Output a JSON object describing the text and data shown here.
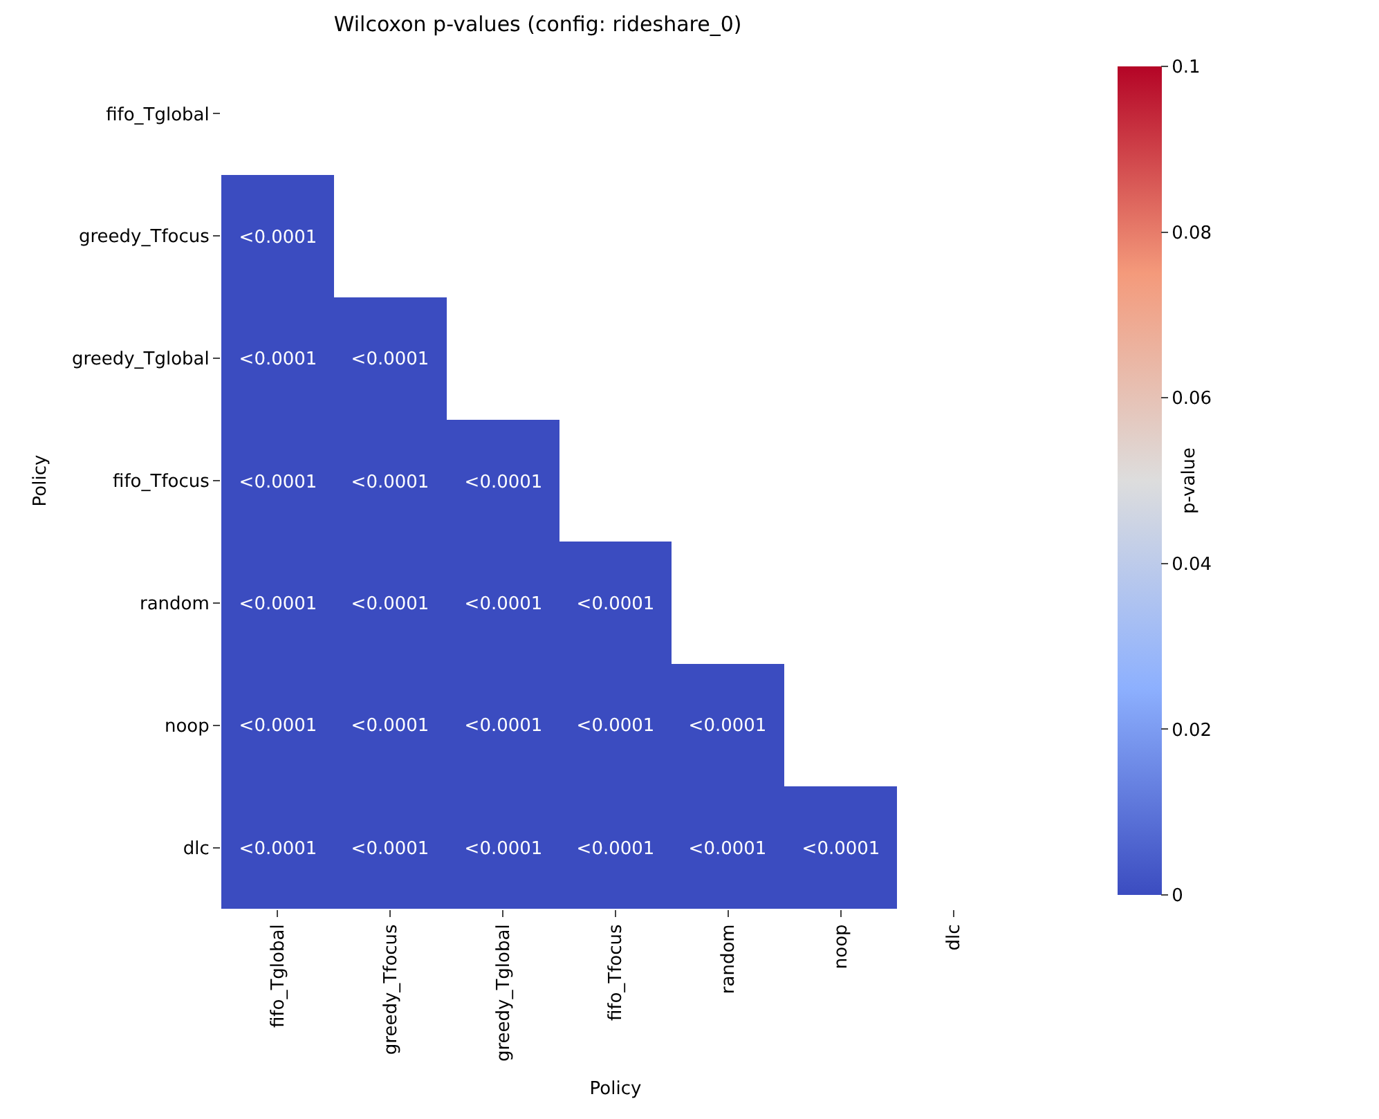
{
  "chart_data": {
    "type": "heatmap",
    "title": "Wilcoxon p-values (config: rideshare_0)",
    "xlabel": "Policy",
    "ylabel": "Policy",
    "clabel": "p-value",
    "categories": [
      "fifo_Tglobal",
      "greedy_Tfocus",
      "greedy_Tglobal",
      "fifo_Tfocus",
      "random",
      "noop",
      "dlc"
    ],
    "y_categories": [
      "fifo_Tglobal",
      "greedy_Tfocus",
      "greedy_Tglobal",
      "fifo_Tfocus",
      "random",
      "noop",
      "dlc"
    ],
    "cells": [
      [
        null,
        null,
        null,
        null,
        null,
        null,
        null
      ],
      [
        0,
        null,
        null,
        null,
        null,
        null,
        null
      ],
      [
        0,
        0,
        null,
        null,
        null,
        null,
        null
      ],
      [
        0,
        0,
        0,
        null,
        null,
        null,
        null
      ],
      [
        0,
        0,
        0,
        0,
        null,
        null,
        null
      ],
      [
        0,
        0,
        0,
        0,
        0,
        null,
        null
      ],
      [
        0,
        0,
        0,
        0,
        0,
        0,
        null
      ]
    ],
    "cell_labels": [
      [
        null,
        null,
        null,
        null,
        null,
        null,
        null
      ],
      [
        "<0.0001",
        null,
        null,
        null,
        null,
        null,
        null
      ],
      [
        "<0.0001",
        "<0.0001",
        null,
        null,
        null,
        null,
        null
      ],
      [
        "<0.0001",
        "<0.0001",
        "<0.0001",
        null,
        null,
        null,
        null
      ],
      [
        "<0.0001",
        "<0.0001",
        "<0.0001",
        "<0.0001",
        null,
        null,
        null
      ],
      [
        "<0.0001",
        "<0.0001",
        "<0.0001",
        "<0.0001",
        "<0.0001",
        null,
        null
      ],
      [
        "<0.0001",
        "<0.0001",
        "<0.0001",
        "<0.0001",
        "<0.0001",
        "<0.0001",
        null
      ]
    ],
    "clim": [
      0,
      0.1
    ],
    "cticks": [
      0,
      0.02,
      0.04,
      0.06,
      0.08,
      0.1
    ]
  }
}
